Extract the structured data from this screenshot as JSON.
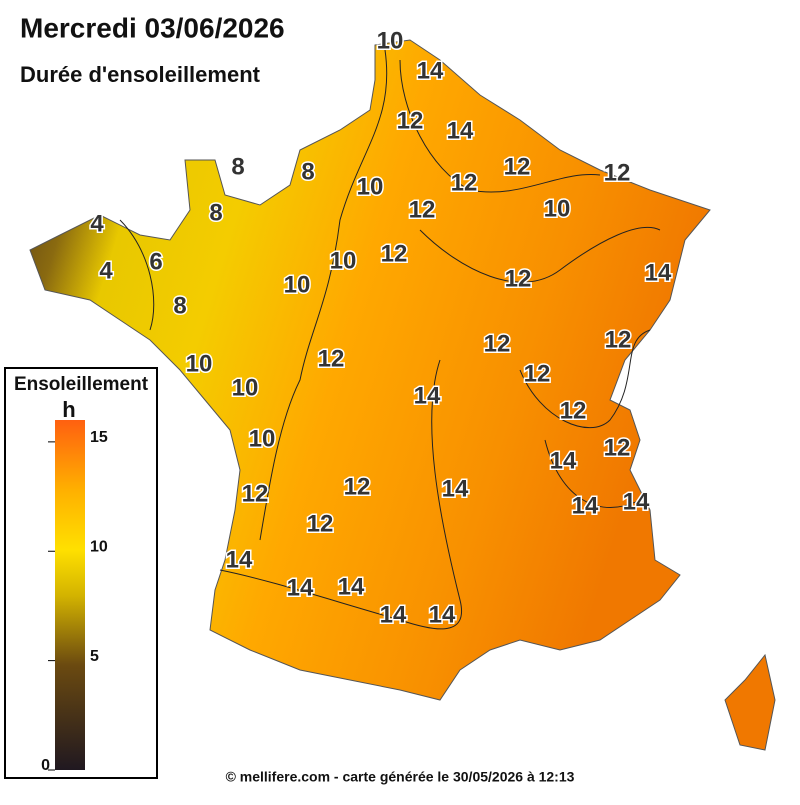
{
  "header": {
    "title": "Mercredi 03/06/2026",
    "subtitle": "Durée d'ensoleillement"
  },
  "legend": {
    "title": "Ensoleillement",
    "unit": "h",
    "lim": [
      0,
      16
    ],
    "ticks": [
      0,
      5,
      10,
      15
    ]
  },
  "contour_labels": [
    10,
    14,
    12,
    14,
    8,
    8,
    12,
    12,
    12,
    10,
    8,
    12,
    10,
    4,
    10,
    12,
    4,
    6,
    12,
    14,
    10,
    8,
    12,
    12,
    12,
    10,
    12,
    10,
    14,
    12,
    10,
    12,
    14,
    14,
    12,
    12,
    14,
    14,
    12,
    14,
    14,
    14,
    14,
    14
  ],
  "footer": "© mellifere.com - carte générée le 30/05/2026 à 12:13"
}
